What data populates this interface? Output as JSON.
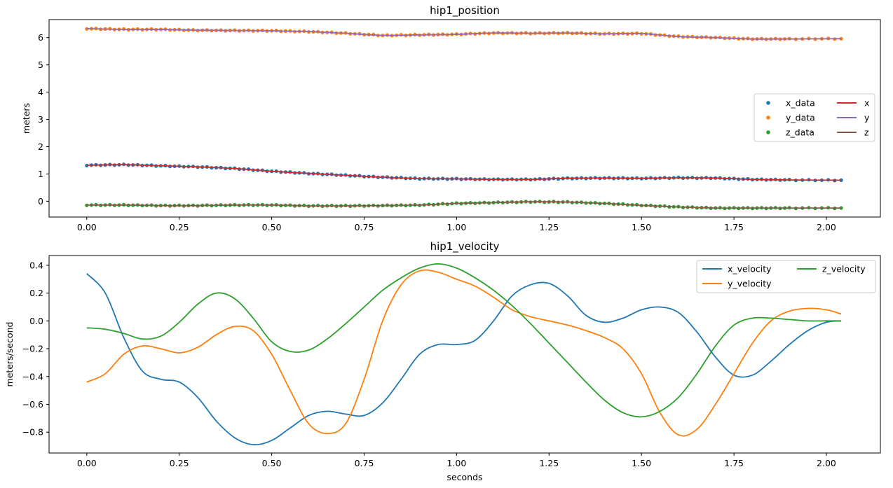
{
  "chart_data": [
    {
      "type": "line",
      "title": "hip1_position",
      "xlabel": "",
      "ylabel": "meters",
      "xlim": [
        -0.102,
        2.146
      ],
      "ylim": [
        -0.58,
        6.66
      ],
      "xticks": [
        "0.00",
        "0.25",
        "0.50",
        "0.75",
        "1.00",
        "1.25",
        "1.50",
        "1.75",
        "2.00"
      ],
      "xtick_values": [
        0,
        0.25,
        0.5,
        0.75,
        1.0,
        1.25,
        1.5,
        1.75,
        2.0
      ],
      "yticks": [
        "0",
        "1",
        "2",
        "3",
        "4",
        "5",
        "6"
      ],
      "ytick_values": [
        0,
        1,
        2,
        3,
        4,
        5,
        6
      ],
      "grid": false,
      "legend": {
        "placement": "center-right",
        "columns": 2
      },
      "series": [
        {
          "name": "x_data",
          "kind": "scatter",
          "color": "#1f77b4",
          "x": [
            0,
            0.1,
            0.2,
            0.3,
            0.4,
            0.5,
            0.6,
            0.7,
            0.8,
            0.9,
            1.0,
            1.1,
            1.2,
            1.3,
            1.4,
            1.5,
            1.6,
            1.7,
            1.8,
            1.9,
            2.04
          ],
          "y": [
            1.32,
            1.34,
            1.3,
            1.26,
            1.2,
            1.1,
            1.02,
            0.95,
            0.88,
            0.83,
            0.82,
            0.8,
            0.8,
            0.84,
            0.85,
            0.84,
            0.86,
            0.85,
            0.8,
            0.78,
            0.77
          ]
        },
        {
          "name": "y_data",
          "kind": "scatter",
          "color": "#ff7f0e",
          "x": [
            0,
            0.1,
            0.2,
            0.3,
            0.4,
            0.5,
            0.6,
            0.7,
            0.8,
            0.9,
            1.0,
            1.1,
            1.2,
            1.3,
            1.4,
            1.5,
            1.6,
            1.7,
            1.8,
            1.9,
            2.04
          ],
          "y": [
            6.33,
            6.3,
            6.3,
            6.27,
            6.26,
            6.25,
            6.22,
            6.16,
            6.08,
            6.1,
            6.12,
            6.17,
            6.16,
            6.17,
            6.14,
            6.15,
            6.04,
            6.0,
            5.95,
            5.95,
            5.96
          ]
        },
        {
          "name": "z_data",
          "kind": "scatter",
          "color": "#2ca02c",
          "x": [
            0,
            0.1,
            0.2,
            0.3,
            0.4,
            0.5,
            0.6,
            0.7,
            0.8,
            0.9,
            1.0,
            1.1,
            1.2,
            1.3,
            1.4,
            1.5,
            1.6,
            1.7,
            1.8,
            1.9,
            2.04
          ],
          "y": [
            -0.14,
            -0.14,
            -0.16,
            -0.16,
            -0.14,
            -0.14,
            -0.17,
            -0.17,
            -0.16,
            -0.14,
            -0.08,
            -0.05,
            -0.02,
            -0.03,
            -0.08,
            -0.15,
            -0.21,
            -0.25,
            -0.25,
            -0.25,
            -0.25
          ]
        },
        {
          "name": "x",
          "kind": "line",
          "color": "#d62728",
          "x": [
            0,
            0.1,
            0.2,
            0.3,
            0.4,
            0.5,
            0.6,
            0.7,
            0.8,
            0.9,
            1.0,
            1.1,
            1.2,
            1.3,
            1.4,
            1.5,
            1.6,
            1.7,
            1.8,
            1.9,
            2.04
          ],
          "y": [
            1.32,
            1.34,
            1.3,
            1.26,
            1.2,
            1.1,
            1.02,
            0.95,
            0.88,
            0.83,
            0.82,
            0.8,
            0.8,
            0.84,
            0.85,
            0.84,
            0.86,
            0.85,
            0.8,
            0.78,
            0.77
          ]
        },
        {
          "name": "y",
          "kind": "line",
          "color": "#9467bd",
          "x": [
            0,
            0.1,
            0.2,
            0.3,
            0.4,
            0.5,
            0.6,
            0.7,
            0.8,
            0.9,
            1.0,
            1.1,
            1.2,
            1.3,
            1.4,
            1.5,
            1.6,
            1.7,
            1.8,
            1.9,
            2.04
          ],
          "y": [
            6.33,
            6.3,
            6.3,
            6.27,
            6.26,
            6.25,
            6.22,
            6.16,
            6.08,
            6.1,
            6.12,
            6.17,
            6.16,
            6.17,
            6.14,
            6.15,
            6.04,
            6.0,
            5.95,
            5.95,
            5.96
          ]
        },
        {
          "name": "z",
          "kind": "line",
          "color": "#8c564b",
          "x": [
            0,
            0.1,
            0.2,
            0.3,
            0.4,
            0.5,
            0.6,
            0.7,
            0.8,
            0.9,
            1.0,
            1.1,
            1.2,
            1.3,
            1.4,
            1.5,
            1.6,
            1.7,
            1.8,
            1.9,
            2.04
          ],
          "y": [
            -0.14,
            -0.14,
            -0.16,
            -0.16,
            -0.14,
            -0.14,
            -0.17,
            -0.17,
            -0.16,
            -0.14,
            -0.08,
            -0.05,
            -0.02,
            -0.03,
            -0.08,
            -0.15,
            -0.21,
            -0.25,
            -0.25,
            -0.25,
            -0.25
          ]
        }
      ]
    },
    {
      "type": "line",
      "title": "hip1_velocity",
      "xlabel": "seconds",
      "ylabel": "meters/second",
      "xlim": [
        -0.102,
        2.146
      ],
      "ylim": [
        -0.95,
        0.47
      ],
      "xticks": [
        "0.00",
        "0.25",
        "0.50",
        "0.75",
        "1.00",
        "1.25",
        "1.50",
        "1.75",
        "2.00"
      ],
      "xtick_values": [
        0,
        0.25,
        0.5,
        0.75,
        1.0,
        1.25,
        1.5,
        1.75,
        2.0
      ],
      "yticks": [
        "0.4",
        "0.2",
        "0.0",
        "−0.2",
        "−0.4",
        "−0.6",
        "−0.8"
      ],
      "ytick_values": [
        0.4,
        0.2,
        0.0,
        -0.2,
        -0.4,
        -0.6,
        -0.8
      ],
      "grid": false,
      "legend": {
        "placement": "top-right",
        "columns": 2
      },
      "series": [
        {
          "name": "x_velocity",
          "color": "#1f77b4",
          "x": [
            0,
            0.05,
            0.1,
            0.15,
            0.2,
            0.25,
            0.3,
            0.35,
            0.4,
            0.45,
            0.5,
            0.55,
            0.6,
            0.65,
            0.7,
            0.75,
            0.8,
            0.85,
            0.9,
            0.95,
            1.0,
            1.05,
            1.1,
            1.15,
            1.2,
            1.25,
            1.3,
            1.35,
            1.4,
            1.45,
            1.5,
            1.55,
            1.6,
            1.65,
            1.7,
            1.75,
            1.8,
            1.85,
            1.9,
            1.95,
            2.0,
            2.04
          ],
          "y": [
            0.34,
            0.2,
            -0.12,
            -0.36,
            -0.42,
            -0.44,
            -0.55,
            -0.72,
            -0.84,
            -0.89,
            -0.86,
            -0.77,
            -0.68,
            -0.65,
            -0.67,
            -0.68,
            -0.59,
            -0.42,
            -0.24,
            -0.17,
            -0.17,
            -0.14,
            0.0,
            0.18,
            0.26,
            0.27,
            0.18,
            0.04,
            -0.01,
            0.02,
            0.08,
            0.1,
            0.06,
            -0.08,
            -0.26,
            -0.39,
            -0.39,
            -0.29,
            -0.17,
            -0.07,
            -0.01,
            0.0
          ]
        },
        {
          "name": "y_velocity",
          "color": "#ff7f0e",
          "x": [
            0,
            0.05,
            0.1,
            0.15,
            0.2,
            0.25,
            0.3,
            0.35,
            0.4,
            0.45,
            0.5,
            0.55,
            0.6,
            0.65,
            0.7,
            0.75,
            0.8,
            0.85,
            0.9,
            0.95,
            1.0,
            1.05,
            1.1,
            1.15,
            1.2,
            1.25,
            1.3,
            1.35,
            1.4,
            1.45,
            1.5,
            1.55,
            1.6,
            1.65,
            1.7,
            1.75,
            1.8,
            1.85,
            1.9,
            1.95,
            2.0,
            2.04
          ],
          "y": [
            -0.44,
            -0.38,
            -0.24,
            -0.18,
            -0.2,
            -0.23,
            -0.19,
            -0.1,
            -0.04,
            -0.07,
            -0.24,
            -0.5,
            -0.74,
            -0.81,
            -0.74,
            -0.42,
            0.0,
            0.26,
            0.36,
            0.35,
            0.3,
            0.25,
            0.17,
            0.08,
            0.03,
            0.0,
            -0.03,
            -0.07,
            -0.12,
            -0.2,
            -0.38,
            -0.66,
            -0.82,
            -0.78,
            -0.6,
            -0.38,
            -0.16,
            0.0,
            0.07,
            0.09,
            0.08,
            0.05
          ]
        },
        {
          "name": "z_velocity",
          "color": "#2ca02c",
          "x": [
            0,
            0.05,
            0.1,
            0.15,
            0.2,
            0.25,
            0.3,
            0.35,
            0.4,
            0.45,
            0.5,
            0.55,
            0.6,
            0.65,
            0.7,
            0.75,
            0.8,
            0.85,
            0.9,
            0.95,
            1.0,
            1.05,
            1.1,
            1.15,
            1.2,
            1.25,
            1.3,
            1.35,
            1.4,
            1.45,
            1.5,
            1.55,
            1.6,
            1.65,
            1.7,
            1.75,
            1.8,
            1.85,
            1.9,
            1.95,
            2.0,
            2.04
          ],
          "y": [
            -0.05,
            -0.06,
            -0.09,
            -0.13,
            -0.11,
            -0.01,
            0.12,
            0.2,
            0.16,
            0.02,
            -0.15,
            -0.22,
            -0.21,
            -0.13,
            -0.02,
            0.1,
            0.22,
            0.31,
            0.38,
            0.41,
            0.38,
            0.31,
            0.22,
            0.11,
            -0.02,
            -0.16,
            -0.3,
            -0.44,
            -0.57,
            -0.66,
            -0.69,
            -0.65,
            -0.55,
            -0.38,
            -0.18,
            -0.03,
            0.02,
            0.02,
            0.01,
            0.0,
            0.0,
            0.0
          ]
        }
      ]
    }
  ]
}
